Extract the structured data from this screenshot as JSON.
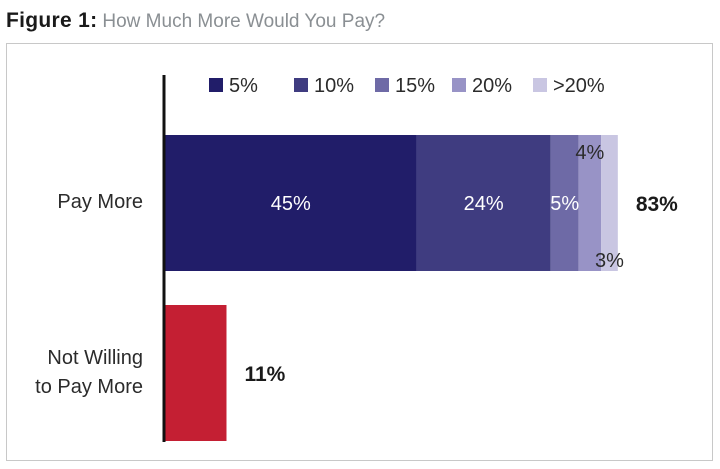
{
  "figure": {
    "label": "Figure 1:",
    "title": "How Much More Would You Pay?"
  },
  "chart_data": {
    "type": "bar",
    "orientation": "horizontal",
    "stacked": true,
    "title": "How Much More Would You Pay?",
    "categories": [
      "Pay More",
      "Not Willing to Pay More"
    ],
    "category_lines": [
      [
        "Pay More"
      ],
      [
        "Not Willing",
        "to Pay More"
      ]
    ],
    "legend": [
      "5%",
      "10%",
      "15%",
      "20%",
      ">20%"
    ],
    "legend_position": "top",
    "series": [
      {
        "name": "5%",
        "color": "#211d69",
        "values": [
          45,
          null
        ],
        "label": "45%",
        "label_position": "inside"
      },
      {
        "name": "10%",
        "color": "#3f3c80",
        "values": [
          24,
          null
        ],
        "label": "24%",
        "label_position": "inside"
      },
      {
        "name": "15%",
        "color": "#6e6aa6",
        "values": [
          5,
          null
        ],
        "label": "5%",
        "label_position": "inside"
      },
      {
        "name": "20%",
        "color": "#9893c6",
        "values": [
          4,
          null
        ],
        "label": "4%",
        "label_position": "above"
      },
      {
        "name": ">20%",
        "color": "#c9c6e2",
        "values": [
          3,
          null
        ],
        "label": "3%",
        "label_position": "below"
      },
      {
        "name": "Not Willing to Pay More",
        "color": "#c41f33",
        "values": [
          null,
          11
        ],
        "label": null,
        "in_legend": false
      }
    ],
    "totals": [
      "83%",
      "11%"
    ],
    "xlim": [
      0,
      83
    ],
    "xlabel": "",
    "ylabel": "",
    "grid": false
  }
}
